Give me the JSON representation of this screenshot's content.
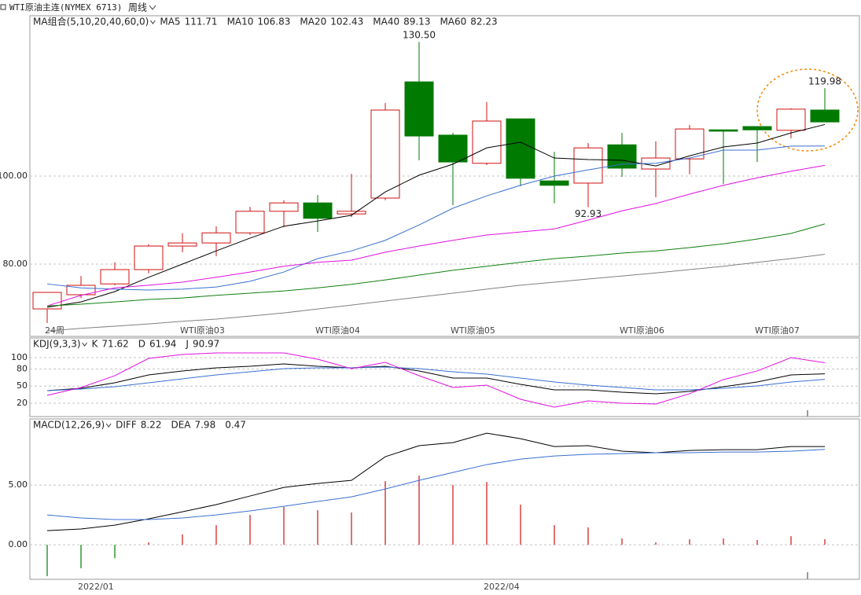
{
  "header": {
    "title": "WTI原油主连(NYMEX 6713)",
    "period": "周线"
  },
  "chart_data": [
    {
      "type": "candlestick",
      "title": "MA组合(5,10,20,40,60,0)",
      "title_color": "#3a6fd0",
      "categories": [
        "24周",
        null,
        null,
        null,
        "WTI原油03",
        null,
        null,
        null,
        "WTI原油04",
        null,
        null,
        null,
        "WTI原油05",
        null,
        null,
        null,
        null,
        "WTI原油06",
        null,
        null,
        null,
        "WTI原油07",
        null,
        null
      ],
      "ohlc": {
        "open": [
          69.82,
          73.04,
          75.5,
          78.75,
          84.1,
          84.8,
          87.1,
          92,
          93.9,
          91.4,
          95,
          121.4,
          109.3,
          102.9,
          113,
          98.9,
          98.4,
          107.1,
          101.6,
          103.9,
          110.5,
          111.25,
          110.4,
          115
        ],
        "high": [
          73.6,
          77.3,
          80.4,
          84.5,
          87,
          88.6,
          93,
          94.5,
          95.7,
          100.5,
          116.6,
          130.5,
          109.8,
          116.8,
          113,
          105.5,
          107.5,
          109.8,
          107.9,
          111.6,
          110.5,
          111.25,
          115.4,
          119.98
        ],
        "low": [
          66.6,
          72.3,
          75.2,
          77.9,
          82.7,
          81.8,
          86.6,
          88.4,
          87.3,
          90.7,
          94.5,
          103.6,
          93.4,
          102.5,
          97.7,
          93.8,
          92.93,
          99.8,
          95.2,
          100.4,
          98.2,
          103.2,
          108.6,
          112.3
        ],
        "close": [
          73.57,
          75.18,
          78.75,
          84.1,
          84.8,
          87.1,
          92,
          93.9,
          90.4,
          92,
          115,
          109.1,
          103.2,
          112.5,
          99.5,
          97.9,
          106.4,
          101.8,
          104.1,
          110.7,
          110.2,
          110.5,
          115.2,
          112.3
        ]
      },
      "up_color": "#d01010",
      "down_color": "#007a00",
      "series": [
        {
          "name": "MA5",
          "color": "#000000",
          "values": [
            70.2,
            71.4,
            73.75,
            77.0,
            80.0,
            83.0,
            85.9,
            88.6,
            89.8,
            91.1,
            96.4,
            100.2,
            102.7,
            106.4,
            107.7,
            104.1,
            103.75,
            103.6,
            102.3,
            104.6,
            106.6,
            107.5,
            109.8,
            111.71
          ]
        },
        {
          "name": "MA10",
          "color": "#3a6fd0",
          "values": [
            75.5,
            74.6,
            74.3,
            74.1,
            74.3,
            74.8,
            76.1,
            78.2,
            81.25,
            83.0,
            85.4,
            88.9,
            92.7,
            95.5,
            97.9,
            100.0,
            101.4,
            102.7,
            102.9,
            104.1,
            105.9,
            105.9,
            106.8,
            106.83
          ]
        },
        {
          "name": "MA20",
          "color": "#e010e0",
          "values": [
            70.5,
            72.9,
            74.6,
            75.2,
            75.9,
            77.0,
            78.2,
            79.5,
            80.4,
            80.9,
            82.7,
            84.1,
            85.4,
            86.6,
            87.3,
            88.0,
            90.0,
            92.1,
            93.75,
            95.9,
            97.9,
            99.6,
            101.1,
            102.43
          ]
        },
        {
          "name": "MA40",
          "color": "#108010",
          "values": [
            70.5,
            70.9,
            71.4,
            71.96,
            72.3,
            72.9,
            73.4,
            73.9,
            74.6,
            75.4,
            76.4,
            77.5,
            78.6,
            79.5,
            80.4,
            81.25,
            81.8,
            82.5,
            83.0,
            83.75,
            84.6,
            85.7,
            86.96,
            89.13
          ]
        },
        {
          "name": "MA60",
          "color": "#808080",
          "values": [
            64.8,
            65.4,
            65.9,
            66.4,
            67.0,
            67.5,
            68.2,
            68.9,
            69.8,
            70.7,
            71.6,
            72.5,
            73.4,
            74.3,
            75.2,
            75.9,
            76.6,
            77.3,
            78.0,
            78.75,
            79.5,
            80.4,
            81.25,
            82.23
          ]
        }
      ],
      "annotations": [
        {
          "value": 130.5,
          "label": "130.50",
          "color": "#d01010"
        },
        {
          "value": 92.93,
          "label": "92.93",
          "color": "#007a00"
        },
        {
          "value": 119.98,
          "label": "119.98",
          "color": "#d01010"
        }
      ],
      "ylim": [
        63.57,
        136.43
      ],
      "yticks": [
        {
          "value": 80,
          "label": "80.00"
        },
        {
          "value": 100,
          "label": "100.00"
        }
      ],
      "grid": true
    },
    {
      "type": "line",
      "title": "KDJ(9,3,3)",
      "title_color": "#3a6fd0",
      "series": [
        {
          "name": "K",
          "color": "#000000",
          "values": [
            42.1,
            46.2,
            55.9,
            69.7,
            76.6,
            82.1,
            84.8,
            89.0,
            84.8,
            82.1,
            84.8,
            76.6,
            64.1,
            64.1,
            53.1,
            43.4,
            43.4,
            39.3,
            36.6,
            40.7,
            49.0,
            57.2,
            69.7,
            71.62
          ]
        },
        {
          "name": "D",
          "color": "#3a6fd0",
          "values": [
            42.1,
            44.8,
            49.0,
            55.9,
            62.8,
            69.7,
            75.2,
            80.7,
            82.1,
            82.1,
            83.4,
            80.7,
            75.2,
            71.0,
            64.1,
            57.2,
            51.7,
            47.6,
            43.4,
            43.4,
            46.2,
            50.3,
            57.2,
            61.94
          ]
        },
        {
          "name": "J",
          "color": "#e010e0",
          "values": [
            33.8,
            47.6,
            68.3,
            98.6,
            105.5,
            108.3,
            108.3,
            108.3,
            97.2,
            80.7,
            91.7,
            68.3,
            47.6,
            51.7,
            26.9,
            13.1,
            24.1,
            20.0,
            18.6,
            36.6,
            61.4,
            76.6,
            100.0,
            90.97
          ]
        }
      ],
      "ylim": [
        -3.5,
        134.5
      ],
      "yticks": [
        20,
        50,
        80,
        100
      ],
      "grid": true
    },
    {
      "type": "macd",
      "title": "MACD(12,26,9)",
      "title_color": "#3a6fd0",
      "categories": [
        null,
        "2022/01",
        null,
        null,
        null,
        null,
        null,
        null,
        null,
        null,
        null,
        null,
        null,
        "2022/04",
        null,
        null,
        null,
        null,
        null,
        null,
        null,
        null,
        null,
        null
      ],
      "series": [
        {
          "name": "DIFF",
          "color": "#000000",
          "values": [
            1.18,
            1.32,
            1.64,
            2.17,
            2.76,
            3.36,
            4.08,
            4.8,
            5.13,
            5.39,
            7.37,
            8.29,
            8.55,
            9.34,
            8.88,
            8.22,
            8.29,
            7.83,
            7.7,
            7.89,
            7.96,
            7.96,
            8.22,
            8.22
          ]
        },
        {
          "name": "DEA",
          "color": "#3a6fd0",
          "values": [
            2.5,
            2.24,
            2.11,
            2.11,
            2.24,
            2.5,
            2.83,
            3.22,
            3.62,
            4.01,
            4.67,
            5.39,
            6.05,
            6.71,
            7.17,
            7.43,
            7.57,
            7.63,
            7.7,
            7.7,
            7.76,
            7.76,
            7.83,
            7.98
          ]
        }
      ],
      "histogram": {
        "color": "#000000",
        "up_color": "#d01010",
        "down_color": "#007a00",
        "values": [
          -2.63,
          -1.97,
          -1.12,
          0.2,
          0.86,
          1.64,
          2.5,
          3.16,
          2.89,
          2.7,
          5.33,
          5.79,
          5.0,
          5.26,
          3.36,
          1.64,
          1.45,
          0.53,
          0.2,
          0.46,
          0.53,
          0.4,
          0.72,
          0.47
        ]
      },
      "ylim": [
        -2.89,
        10.53
      ],
      "yticks": [
        {
          "value": 0,
          "label": "0.00"
        },
        {
          "value": 5,
          "label": "5.00"
        }
      ],
      "grid": true
    }
  ]
}
